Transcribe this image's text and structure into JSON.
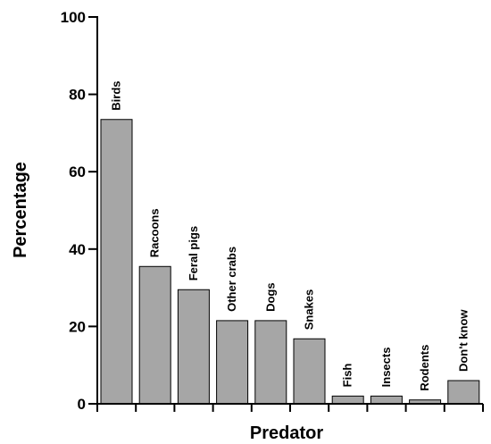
{
  "chart_data": {
    "type": "bar",
    "xlabel": "Predator",
    "ylabel": "Percentage",
    "ylim": [
      0,
      100
    ],
    "yticks": [
      0,
      20,
      40,
      60,
      80,
      100
    ],
    "grid": false,
    "legend": "none",
    "bar_color": "#a6a6a6",
    "categories": [
      "Birds",
      "Racoons",
      "Feral pigs",
      "Other crabs",
      "Dogs",
      "Snakes",
      "Fish",
      "Insects",
      "Rodents",
      "Don't know"
    ],
    "values": [
      73.5,
      35.5,
      29.5,
      21.5,
      21.5,
      16.8,
      2.0,
      2.0,
      1.0,
      6.0
    ]
  }
}
